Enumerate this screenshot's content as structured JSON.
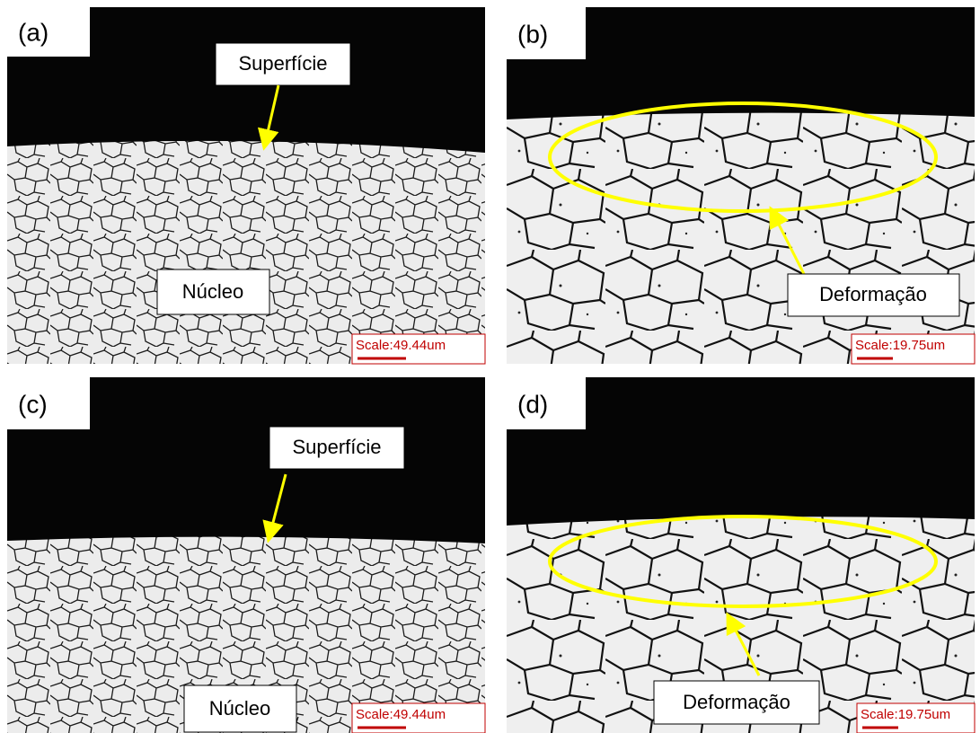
{
  "panels": [
    {
      "label": "(a)",
      "annotations": [
        "Superfície",
        "Núcleo"
      ],
      "scale": "Scale:49.44um"
    },
    {
      "label": "(b)",
      "annotations": [
        "Deformação"
      ],
      "scale": "Scale:19.75um"
    },
    {
      "label": "(c)",
      "annotations": [
        "Superfície",
        "Núcleo"
      ],
      "scale": "Scale:49.44um"
    },
    {
      "label": "(d)",
      "annotations": [
        "Deformação"
      ],
      "scale": "Scale:19.75um"
    }
  ]
}
